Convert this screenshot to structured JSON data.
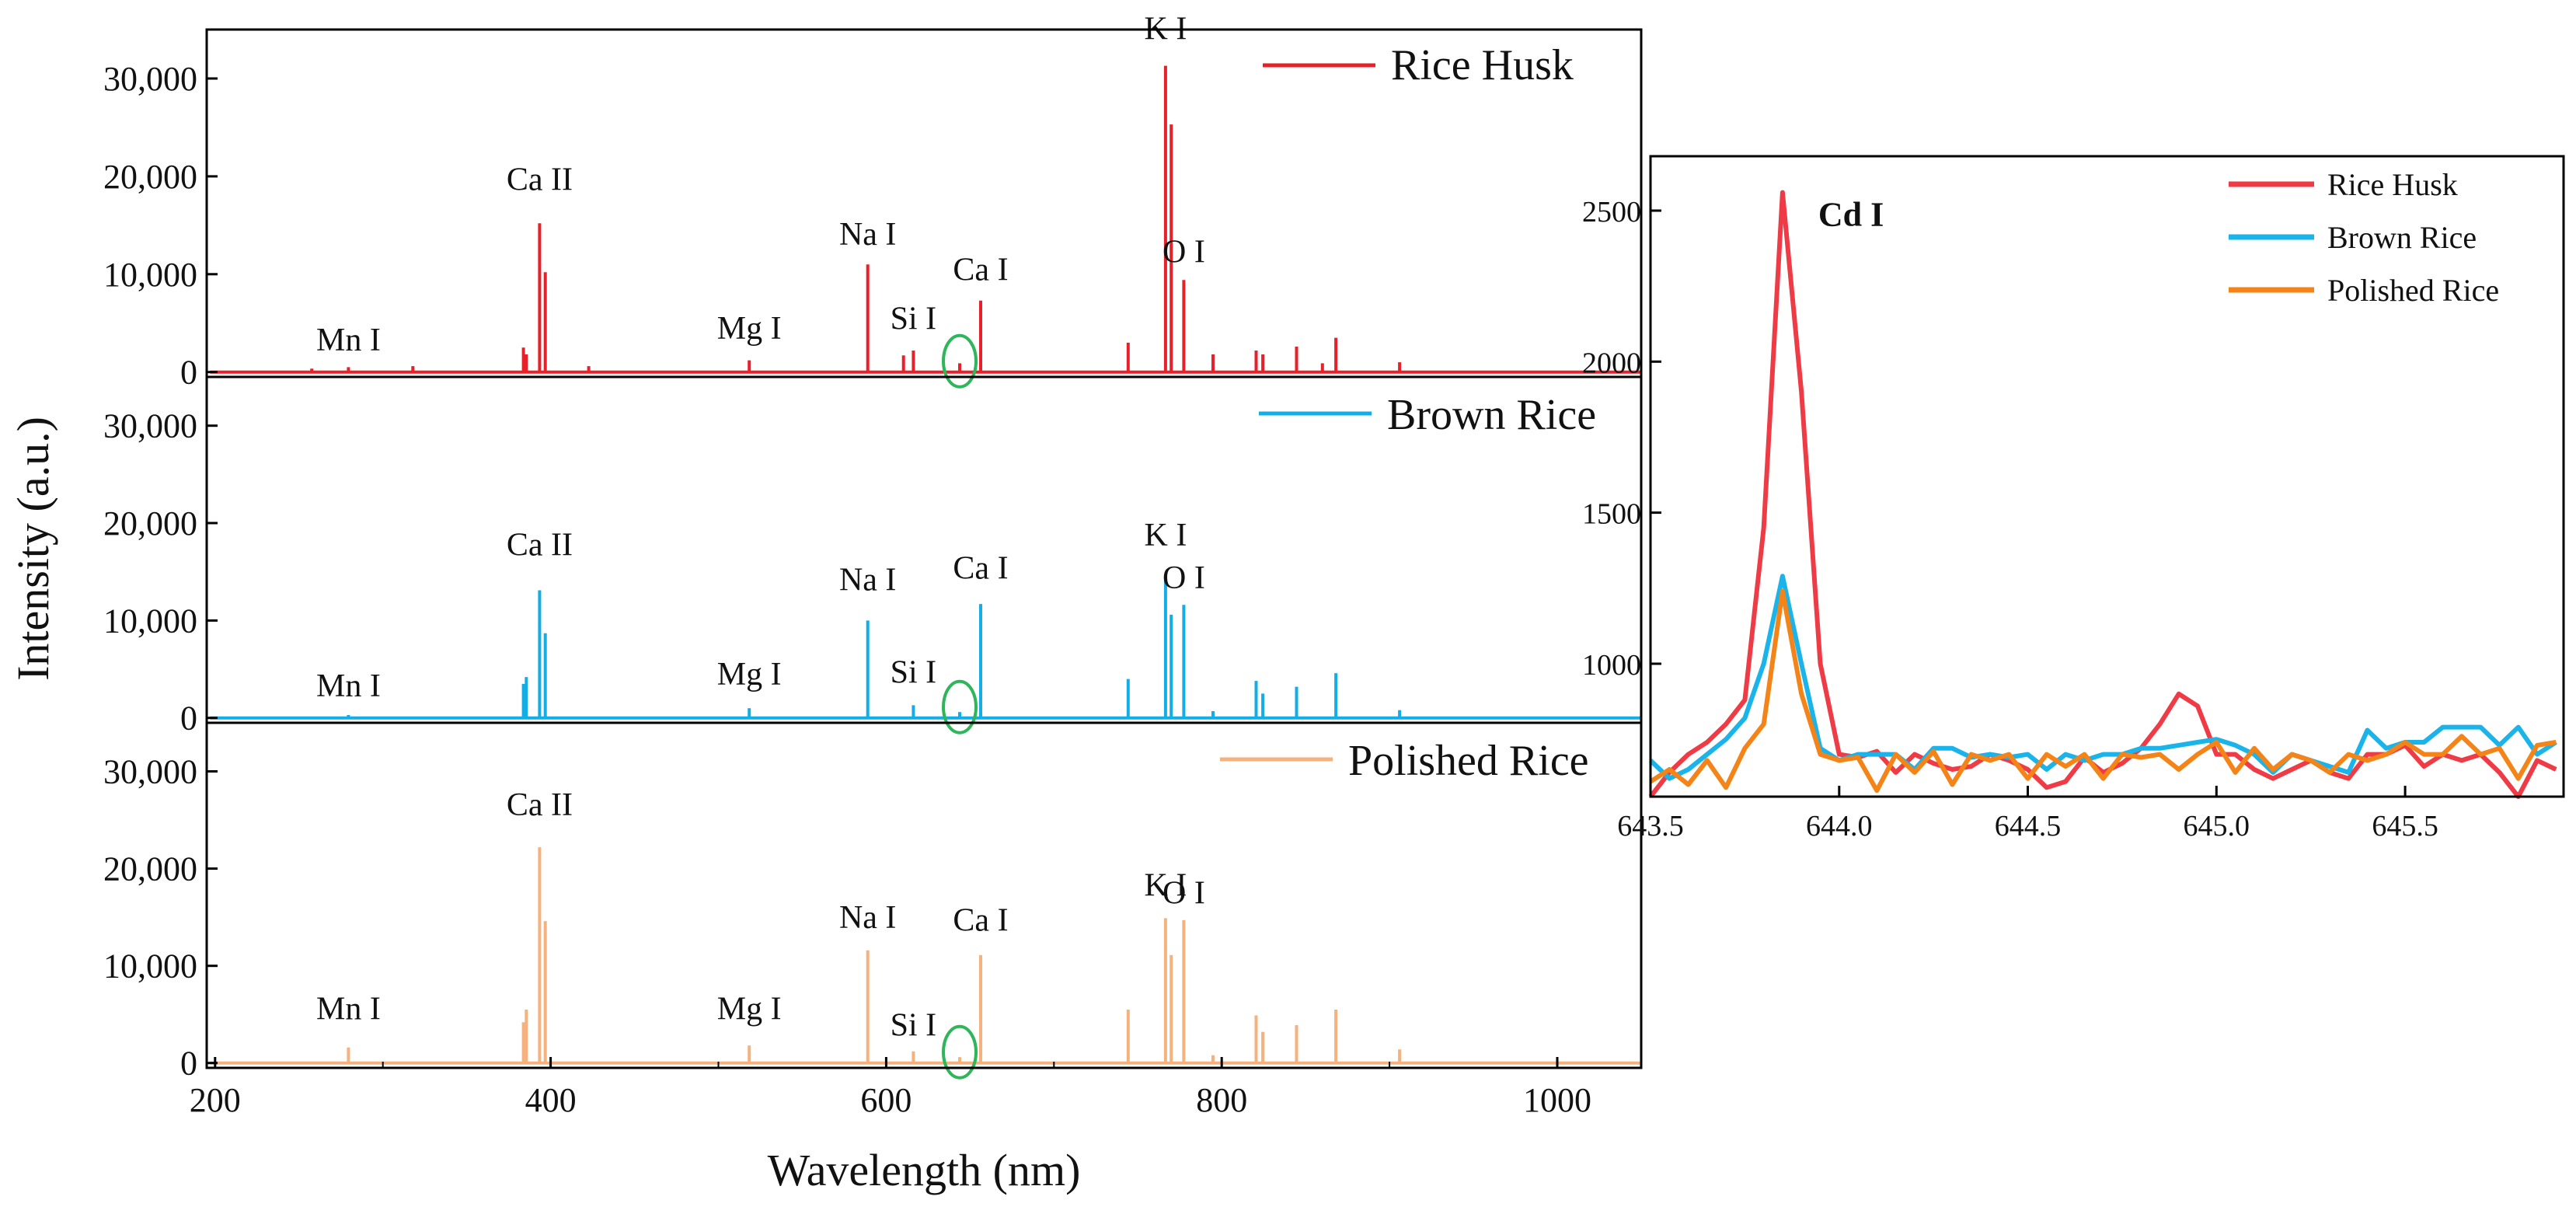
{
  "chart_data": [
    {
      "type": "line",
      "subtype": "stacked-spectra",
      "title": "",
      "xlabel": "Wavelength (nm)",
      "ylabel": "Intensity (a.u.)",
      "xlim": [
        195,
        1050
      ],
      "xticks": [
        200,
        400,
        600,
        800,
        1000
      ],
      "xtick_labels": [
        "200",
        "400",
        "600",
        "800",
        "1000"
      ],
      "ylim": [
        -500,
        35000
      ],
      "yticks": [
        0,
        10000,
        20000,
        30000
      ],
      "ytick_labels": [
        "0",
        "10,000",
        "20,000",
        "30,000"
      ],
      "marker_wavelength": 643.8,
      "panels": [
        {
          "name": "Rice Husk",
          "color": "#e8202a",
          "legend": "Rice Husk",
          "peaks": [
            {
              "x": 257.6,
              "y": 350
            },
            {
              "x": 279.5,
              "y": 500
            },
            {
              "x": 317.9,
              "y": 600
            },
            {
              "x": 383.8,
              "y": 2500
            },
            {
              "x": 385.5,
              "y": 1800
            },
            {
              "x": 393.4,
              "y": 15200
            },
            {
              "x": 396.8,
              "y": 10200
            },
            {
              "x": 422.7,
              "y": 600
            },
            {
              "x": 518.4,
              "y": 1200
            },
            {
              "x": 589.0,
              "y": 11000
            },
            {
              "x": 610.3,
              "y": 1700
            },
            {
              "x": 616.2,
              "y": 2200
            },
            {
              "x": 643.8,
              "y": 900
            },
            {
              "x": 656.3,
              "y": 7300
            },
            {
              "x": 744.2,
              "y": 3000
            },
            {
              "x": 766.5,
              "y": 31300
            },
            {
              "x": 769.9,
              "y": 25300
            },
            {
              "x": 777.4,
              "y": 9400
            },
            {
              "x": 794.8,
              "y": 1800
            },
            {
              "x": 820.5,
              "y": 2200
            },
            {
              "x": 824.5,
              "y": 1800
            },
            {
              "x": 844.6,
              "y": 2600
            },
            {
              "x": 860,
              "y": 900
            },
            {
              "x": 868.0,
              "y": 3500
            },
            {
              "x": 906,
              "y": 1000
            }
          ],
          "labels": [
            {
              "text": "Mn I",
              "x": 279.5,
              "y": 2200
            },
            {
              "text": "Ca II",
              "x": 393.4,
              "y": 18600
            },
            {
              "text": "Mg I",
              "x": 518.4,
              "y": 3400
            },
            {
              "text": "Na I",
              "x": 589.0,
              "y": 13000
            },
            {
              "text": "Si I",
              "x": 616.2,
              "y": 4400
            },
            {
              "text": "Ca I",
              "x": 656.3,
              "y": 9400
            },
            {
              "text": "K I",
              "x": 766.5,
              "y": 34000
            },
            {
              "text": "O I",
              "x": 777.4,
              "y": 11200
            }
          ]
        },
        {
          "name": "Brown Rice",
          "color": "#14aee6",
          "legend": "Brown Rice",
          "peaks": [
            {
              "x": 279.5,
              "y": 300
            },
            {
              "x": 383.8,
              "y": 3500
            },
            {
              "x": 385.5,
              "y": 4200
            },
            {
              "x": 393.4,
              "y": 13100
            },
            {
              "x": 396.8,
              "y": 8700
            },
            {
              "x": 518.4,
              "y": 1000
            },
            {
              "x": 589.0,
              "y": 10000
            },
            {
              "x": 616.2,
              "y": 1300
            },
            {
              "x": 643.8,
              "y": 600
            },
            {
              "x": 656.3,
              "y": 11700
            },
            {
              "x": 744.2,
              "y": 4000
            },
            {
              "x": 766.5,
              "y": 14600
            },
            {
              "x": 769.9,
              "y": 10600
            },
            {
              "x": 777.4,
              "y": 11600
            },
            {
              "x": 794.8,
              "y": 700
            },
            {
              "x": 820.5,
              "y": 3800
            },
            {
              "x": 824.5,
              "y": 2500
            },
            {
              "x": 844.6,
              "y": 3200
            },
            {
              "x": 868.0,
              "y": 4600
            },
            {
              "x": 906,
              "y": 800
            }
          ],
          "labels": [
            {
              "text": "Mn I",
              "x": 279.5,
              "y": 2200
            },
            {
              "text": "Ca II",
              "x": 393.4,
              "y": 16700
            },
            {
              "text": "Mg I",
              "x": 518.4,
              "y": 3400
            },
            {
              "text": "Na I",
              "x": 589.0,
              "y": 13100
            },
            {
              "text": "Si I",
              "x": 616.2,
              "y": 3600
            },
            {
              "text": "Ca I",
              "x": 656.3,
              "y": 14300
            },
            {
              "text": "K I",
              "x": 766.5,
              "y": 17700
            },
            {
              "text": "O I",
              "x": 777.4,
              "y": 13300
            }
          ]
        },
        {
          "name": "Polished Rice",
          "color": "#f5b27e",
          "legend": "Polished Rice",
          "peaks": [
            {
              "x": 279.5,
              "y": 1600
            },
            {
              "x": 383.8,
              "y": 4200
            },
            {
              "x": 385.5,
              "y": 5500
            },
            {
              "x": 393.4,
              "y": 22200
            },
            {
              "x": 396.8,
              "y": 14600
            },
            {
              "x": 518.4,
              "y": 1800
            },
            {
              "x": 589.0,
              "y": 11600
            },
            {
              "x": 616.2,
              "y": 1200
            },
            {
              "x": 643.8,
              "y": 600
            },
            {
              "x": 656.3,
              "y": 11100
            },
            {
              "x": 744.2,
              "y": 5500
            },
            {
              "x": 766.5,
              "y": 14900
            },
            {
              "x": 769.9,
              "y": 11100
            },
            {
              "x": 777.4,
              "y": 14700
            },
            {
              "x": 794.8,
              "y": 800
            },
            {
              "x": 820.5,
              "y": 4900
            },
            {
              "x": 824.5,
              "y": 3200
            },
            {
              "x": 844.6,
              "y": 3900
            },
            {
              "x": 868.0,
              "y": 5500
            },
            {
              "x": 906,
              "y": 1400
            }
          ],
          "labels": [
            {
              "text": "Mn I",
              "x": 279.5,
              "y": 4500
            },
            {
              "text": "Ca II",
              "x": 393.4,
              "y": 25500
            },
            {
              "text": "Mg I",
              "x": 518.4,
              "y": 4500
            },
            {
              "text": "Na I",
              "x": 589.0,
              "y": 13900
            },
            {
              "text": "Si I",
              "x": 616.2,
              "y": 2800
            },
            {
              "text": "Ca I",
              "x": 656.3,
              "y": 13600
            },
            {
              "text": "K I",
              "x": 766.5,
              "y": 17200
            },
            {
              "text": "O I",
              "x": 777.4,
              "y": 16400
            }
          ]
        }
      ]
    },
    {
      "type": "line",
      "title": "",
      "annotation": "Cd I",
      "annotation_at": {
        "x": 643.85,
        "y": 2450
      },
      "xlabel": "",
      "ylabel": "",
      "xlim": [
        643.5,
        645.92
      ],
      "xticks": [
        643.5,
        644.0,
        644.5,
        645.0,
        645.5
      ],
      "xtick_labels": [
        "643.5",
        "644.0",
        "644.5",
        "645.0",
        "645.5"
      ],
      "ylim": [
        560,
        2680
      ],
      "yticks": [
        1000,
        1500,
        2000,
        2500
      ],
      "ytick_labels": [
        "1000",
        "1500",
        "2000",
        "2500"
      ],
      "legend_position": "top-right",
      "x": [
        643.5,
        643.55,
        643.6,
        643.65,
        643.7,
        643.75,
        643.8,
        643.85,
        643.9,
        643.95,
        644.0,
        644.05,
        644.1,
        644.15,
        644.2,
        644.25,
        644.3,
        644.35,
        644.4,
        644.45,
        644.5,
        644.55,
        644.6,
        644.65,
        644.7,
        644.75,
        644.8,
        644.85,
        644.9,
        644.95,
        645.0,
        645.05,
        645.1,
        645.15,
        645.2,
        645.25,
        645.3,
        645.35,
        645.4,
        645.45,
        645.5,
        645.55,
        645.6,
        645.65,
        645.7,
        645.75,
        645.8,
        645.85,
        645.9
      ],
      "series": [
        {
          "name": "Rice Husk",
          "color": "#ee3b46",
          "values": [
            560,
            640,
            700,
            740,
            800,
            880,
            1450,
            2560,
            1900,
            1000,
            700,
            690,
            710,
            640,
            700,
            670,
            650,
            660,
            700,
            680,
            650,
            590,
            610,
            690,
            640,
            670,
            720,
            800,
            900,
            860,
            700,
            700,
            650,
            620,
            650,
            680,
            640,
            620,
            700,
            700,
            730,
            660,
            700,
            680,
            700,
            640,
            560,
            680,
            650
          ]
        },
        {
          "name": "Brown Rice",
          "color": "#1ab4ea",
          "values": [
            680,
            620,
            650,
            700,
            750,
            820,
            1000,
            1290,
            1000,
            720,
            680,
            700,
            700,
            700,
            650,
            720,
            720,
            690,
            700,
            690,
            700,
            650,
            700,
            680,
            700,
            700,
            720,
            720,
            730,
            740,
            750,
            730,
            700,
            640,
            700,
            680,
            660,
            640,
            780,
            720,
            740,
            740,
            790,
            790,
            790,
            730,
            790,
            700,
            740
          ]
        },
        {
          "name": "Polished Rice",
          "color": "#f48418",
          "values": [
            610,
            650,
            600,
            680,
            590,
            720,
            800,
            1240,
            900,
            700,
            680,
            690,
            580,
            700,
            640,
            710,
            600,
            700,
            680,
            700,
            620,
            700,
            660,
            700,
            620,
            700,
            690,
            700,
            650,
            700,
            740,
            640,
            720,
            650,
            700,
            680,
            640,
            700,
            680,
            700,
            740,
            700,
            700,
            760,
            700,
            720,
            620,
            730,
            740
          ]
        }
      ]
    }
  ]
}
